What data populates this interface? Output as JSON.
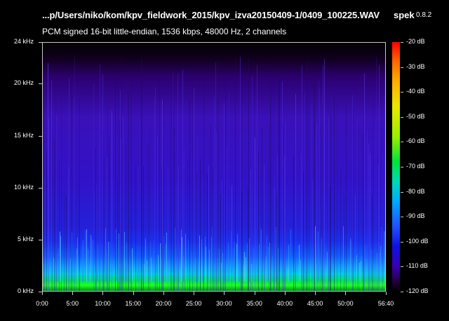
{
  "header": {
    "file_path": "...p/Users/niko/kom/kpv_fieldwork_2015/kpv_izva20150409-1/0409_100225.WAV",
    "app_name": "spek",
    "app_version": "0.8.2",
    "file_info": "PCM signed 16-bit little-endian, 1536 kbps, 48000 Hz, 2 channels"
  },
  "frequency_axis": {
    "labels": [
      "24 kHz",
      "20 kHz",
      "15 kHz",
      "10 kHz",
      "5 kHz",
      "0 kHz"
    ]
  },
  "time_axis": {
    "labels": [
      "0:00",
      "5:00",
      "10:00",
      "15:00",
      "20:00",
      "25:00",
      "30:00",
      "35:00",
      "40:00",
      "45:00",
      "50:00",
      "56:40"
    ]
  },
  "db_scale": {
    "labels": [
      "-20 dB",
      "-30 dB",
      "-40 dB",
      "-50 dB",
      "-60 dB",
      "-70 dB",
      "-80 dB",
      "-90 dB",
      "-100 dB",
      "-110 dB",
      "-120 dB"
    ]
  },
  "chart_data": {
    "type": "heatmap",
    "x_range_minutes": [
      0,
      56.67
    ],
    "y_range_khz": [
      0,
      24
    ],
    "z_range_db": [
      -120,
      -20
    ],
    "x_ticks": [
      "0:00",
      "5:00",
      "10:00",
      "15:00",
      "20:00",
      "25:00",
      "30:00",
      "35:00",
      "40:00",
      "45:00",
      "50:00",
      "56:40"
    ],
    "y_ticks": [
      "0 kHz",
      "5 kHz",
      "10 kHz",
      "15 kHz",
      "20 kHz",
      "24 kHz"
    ],
    "colorbar_ticks": [
      "-20 dB",
      "-30 dB",
      "-40 dB",
      "-50 dB",
      "-60 dB",
      "-70 dB",
      "-80 dB",
      "-90 dB",
      "-100 dB",
      "-110 dB",
      "-120 dB"
    ],
    "colors": {
      "low_band": "#00ff40",
      "mid_band": "#1a40ff",
      "high_band": "#4a10c8",
      "top_band": "#1a0030"
    }
  }
}
